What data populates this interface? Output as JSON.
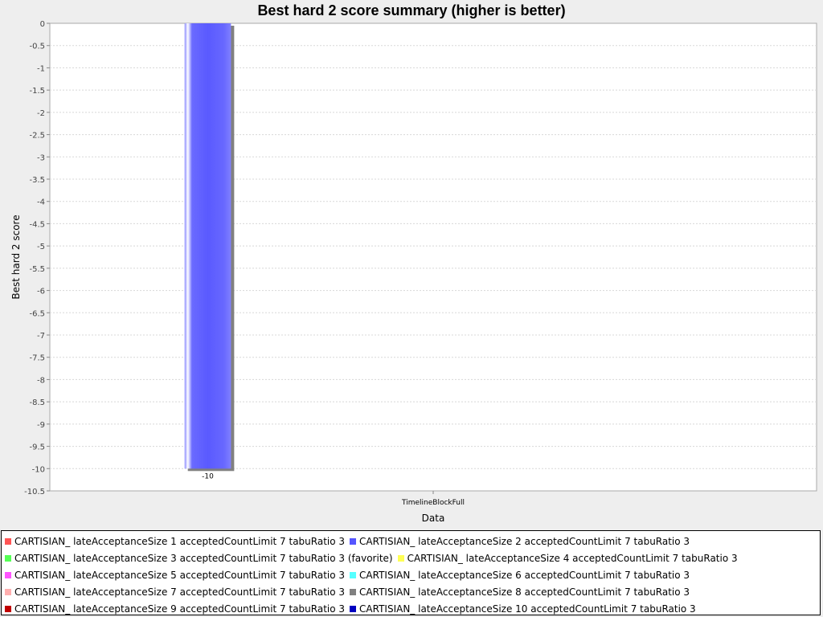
{
  "chart_data": {
    "type": "bar",
    "title": "Best hard 2 score summary (higher is better)",
    "xlabel": "Data",
    "ylabel": "Best hard 2 score",
    "categories": [
      "TimelineBlockFull"
    ],
    "ylim": [
      -10.5,
      0
    ],
    "yticks": [
      "0",
      "-0.5",
      "-1",
      "-1.5",
      "-2",
      "-2.5",
      "-3",
      "-3.5",
      "-4",
      "-4.5",
      "-5",
      "-5.5",
      "-6",
      "-6.5",
      "-7",
      "-7.5",
      "-8",
      "-8.5",
      "-9",
      "-9.5",
      "-10",
      "-10.5"
    ],
    "grid": true,
    "legend_position": "bottom",
    "series": [
      {
        "name": "CARTISIAN_ lateAcceptanceSize 1 acceptedCountLimit 7 tabuRatio 3",
        "color": "#ff5555",
        "values": [
          null
        ]
      },
      {
        "name": "CARTISIAN_ lateAcceptanceSize 2 acceptedCountLimit 7 tabuRatio 3",
        "color": "#5555ff",
        "values": [
          -10
        ],
        "labels": [
          "-10"
        ]
      },
      {
        "name": "CARTISIAN_ lateAcceptanceSize 3 acceptedCountLimit 7 tabuRatio 3 (favorite)",
        "color": "#55ff55",
        "values": [
          null
        ]
      },
      {
        "name": "CARTISIAN_ lateAcceptanceSize 4 acceptedCountLimit 7 tabuRatio 3",
        "color": "#ffff55",
        "values": [
          null
        ]
      },
      {
        "name": "CARTISIAN_ lateAcceptanceSize 5 acceptedCountLimit 7 tabuRatio 3",
        "color": "#ff55ff",
        "values": [
          null
        ]
      },
      {
        "name": "CARTISIAN_ lateAcceptanceSize 6 acceptedCountLimit 7 tabuRatio 3",
        "color": "#55ffff",
        "values": [
          null
        ]
      },
      {
        "name": "CARTISIAN_ lateAcceptanceSize 7 acceptedCountLimit 7 tabuRatio 3",
        "color": "#ffafaf",
        "values": [
          null
        ]
      },
      {
        "name": "CARTISIAN_ lateAcceptanceSize 8 acceptedCountLimit 7 tabuRatio 3",
        "color": "#808080",
        "values": [
          null
        ]
      },
      {
        "name": "CARTISIAN_ lateAcceptanceSize 9 acceptedCountLimit 7 tabuRatio 3",
        "color": "#c00000",
        "values": [
          null
        ]
      },
      {
        "name": "CARTISIAN_ lateAcceptanceSize 10 acceptedCountLimit 7 tabuRatio 3",
        "color": "#0000c0",
        "values": [
          null
        ]
      }
    ],
    "legend_rows": [
      [
        0,
        1
      ],
      [
        2,
        3
      ],
      [
        4,
        5
      ],
      [
        6,
        7
      ],
      [
        8,
        9
      ]
    ]
  }
}
